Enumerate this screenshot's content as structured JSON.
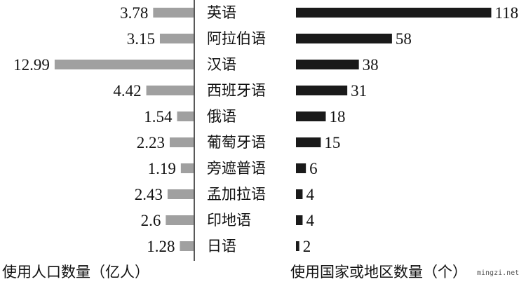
{
  "chart_data": {
    "type": "bar",
    "orientation": "horizontal-butterfly",
    "categories": [
      "英语",
      "阿拉伯语",
      "汉语",
      "西班牙语",
      "俄语",
      "葡萄牙语",
      "旁遮普语",
      "孟加拉语",
      "印地语",
      "日语"
    ],
    "series": [
      {
        "name": "使用人口数量（亿人）",
        "values": [
          3.78,
          3.15,
          12.99,
          4.42,
          1.54,
          2.23,
          1.19,
          2.43,
          2.6,
          1.28
        ],
        "labels": [
          "3.78",
          "3.15",
          "12.99",
          "4.42",
          "1.54",
          "2.23",
          "1.19",
          "2.43",
          "2.6",
          "1.28"
        ],
        "color": "#a0a0a0",
        "side": "left"
      },
      {
        "name": "使用国家或地区数量（个）",
        "values": [
          118,
          58,
          38,
          31,
          18,
          15,
          6,
          4,
          4,
          2
        ],
        "labels": [
          "118",
          "58",
          "38",
          "31",
          "18",
          "15",
          "6",
          "4",
          "4",
          "2"
        ],
        "color": "#1a1a1a",
        "side": "right"
      }
    ],
    "grid": false,
    "legend": "none"
  },
  "watermark": "mingzi.net"
}
